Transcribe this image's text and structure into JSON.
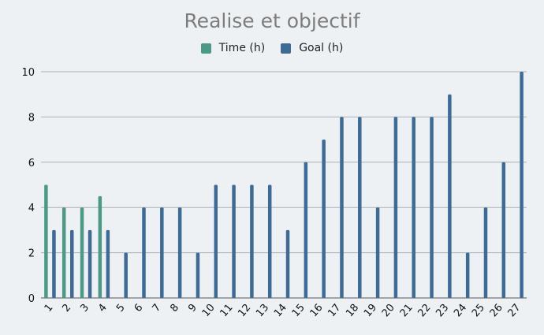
{
  "chart_data": {
    "type": "bar",
    "title": "Realise et objectif",
    "xlabel": "",
    "ylabel": "",
    "ylim": [
      0,
      10
    ],
    "yticks": [
      0,
      2,
      4,
      6,
      8,
      10
    ],
    "grid": true,
    "legend_position": "top-center",
    "categories": [
      "1",
      "2",
      "3",
      "4",
      "5",
      "6",
      "7",
      "8",
      "9",
      "10",
      "11",
      "12",
      "13",
      "14",
      "15",
      "16",
      "17",
      "18",
      "19",
      "20",
      "21",
      "22",
      "23",
      "24",
      "25",
      "26",
      "27"
    ],
    "series": [
      {
        "name": "Time (h)",
        "color": "#4a9a87",
        "values": [
          5,
          4,
          4,
          4.5,
          null,
          null,
          null,
          null,
          null,
          null,
          null,
          null,
          null,
          null,
          null,
          null,
          null,
          null,
          null,
          null,
          null,
          null,
          null,
          null,
          null,
          null,
          null
        ]
      },
      {
        "name": "Goal (h)",
        "color": "#3d6b96",
        "values": [
          3,
          3,
          3,
          3,
          2,
          4,
          4,
          4,
          2,
          5,
          5,
          5,
          5,
          3,
          6,
          7,
          8,
          8,
          4,
          8,
          8,
          8,
          9,
          2,
          4,
          6,
          10
        ]
      }
    ]
  }
}
